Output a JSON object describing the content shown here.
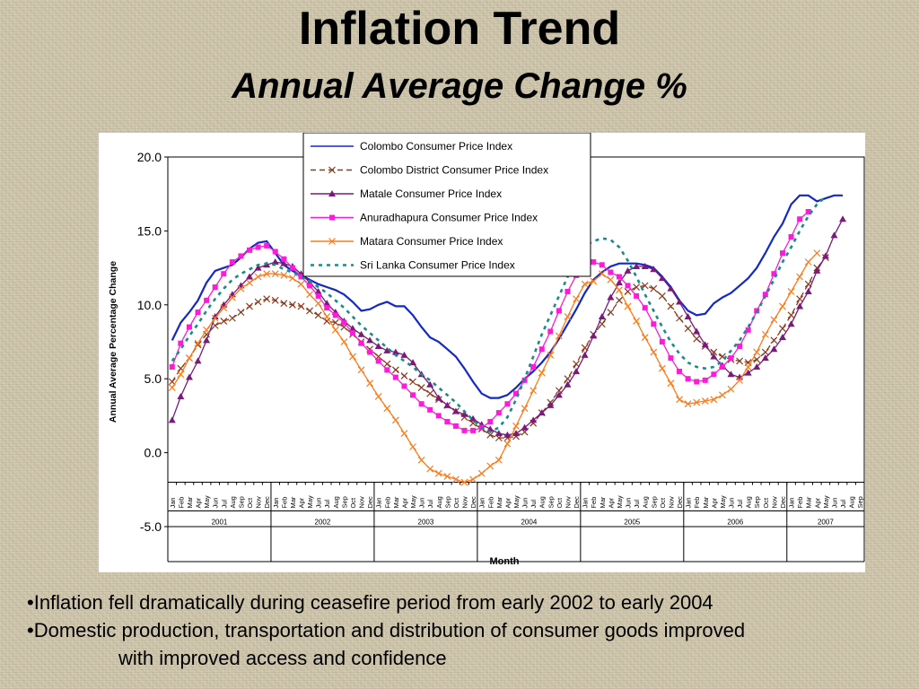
{
  "slide": {
    "title": "Inflation Trend",
    "subtitle": "Annual Average Change %",
    "bullets": [
      "•Inflation fell dramatically during ceasefire period from early 2002 to early 2004",
      "•Domestic production, transportation and distribution of consumer goods improved",
      "with improved access and confidence"
    ]
  },
  "chart_data": {
    "type": "line",
    "ylabel": "Annual Average Percentage Change",
    "xlabel": "Month",
    "ylim": [
      -5.0,
      20.0
    ],
    "yticks": [
      "20.0",
      "15.0",
      "10.0",
      "5.0",
      "0.0",
      "-5.0"
    ],
    "ytick_values": [
      20,
      15,
      10,
      5,
      0,
      -5
    ],
    "month_labels": [
      "Jan",
      "Feb",
      "Mar",
      "Apr",
      "May",
      "Jun",
      "Jul",
      "Aug",
      "Sep",
      "Oct",
      "Nov",
      "Dec"
    ],
    "years": [
      "2001",
      "2002",
      "2003",
      "2004",
      "2005",
      "2006",
      "2007"
    ],
    "last_month_label": "Sep",
    "x_start": "Jan 2001",
    "legend_position": "top-center",
    "grid": false,
    "series": [
      {
        "name": "Colombo Consumer Price Index",
        "color": "#1428c8",
        "style": "solid",
        "marker": "none",
        "values": [
          7.6,
          8.8,
          9.5,
          10.3,
          11.5,
          12.3,
          12.5,
          12.7,
          13.2,
          13.8,
          14.2,
          14.3,
          13.5,
          12.7,
          12.3,
          12.0,
          11.7,
          11.4,
          11.2,
          11.0,
          10.7,
          10.2,
          9.6,
          9.7,
          10.0,
          10.2,
          9.9,
          9.9,
          9.3,
          8.5,
          7.8,
          7.5,
          7.0,
          6.5,
          5.7,
          4.8,
          4.0,
          3.7,
          3.7,
          3.9,
          4.4,
          5.0,
          5.5,
          6.1,
          6.8,
          7.7,
          8.7,
          9.7,
          10.8,
          11.7,
          12.2,
          12.6,
          12.8,
          12.8,
          12.8,
          12.7,
          12.5,
          11.9,
          11.2,
          10.3,
          9.6,
          9.3,
          9.4,
          10.1,
          10.5,
          10.8,
          11.3,
          11.8,
          12.5,
          13.5,
          14.6,
          15.5,
          16.8,
          17.4,
          17.4,
          17.0,
          17.2,
          17.4,
          17.4
        ]
      },
      {
        "name": "Colombo District Consumer Price Index",
        "color": "#8b3a1c",
        "style": "dashed",
        "marker": "x",
        "values": [
          4.8,
          5.7,
          6.4,
          7.3,
          8.0,
          8.6,
          8.9,
          9.1,
          9.5,
          9.9,
          10.2,
          10.4,
          10.3,
          10.1,
          10.0,
          9.9,
          9.6,
          9.3,
          8.9,
          8.8,
          8.5,
          8.0,
          7.5,
          7.0,
          6.5,
          6.0,
          5.6,
          5.2,
          4.8,
          4.4,
          4.0,
          3.6,
          3.2,
          2.8,
          2.4,
          2.0,
          1.6,
          1.2,
          1.0,
          1.0,
          1.1,
          1.4,
          2.0,
          2.7,
          3.4,
          4.2,
          5.0,
          6.0,
          7.1,
          8.0,
          8.7,
          9.5,
          10.3,
          10.9,
          11.2,
          11.3,
          11.1,
          10.6,
          9.9,
          9.1,
          8.4,
          7.7,
          7.2,
          6.8,
          6.5,
          6.3,
          6.2,
          6.1,
          6.3,
          6.8,
          7.6,
          8.4,
          9.3,
          10.4,
          11.4,
          12.5,
          13.2
        ]
      },
      {
        "name": "Matale Consumer Price Index",
        "color": "#7a1a7a",
        "style": "solid",
        "marker": "triangle",
        "values": [
          2.2,
          3.8,
          5.1,
          6.2,
          7.6,
          9.2,
          10.0,
          10.7,
          11.3,
          11.9,
          12.5,
          12.7,
          12.9,
          12.8,
          12.6,
          12.1,
          11.5,
          10.9,
          10.1,
          9.5,
          8.9,
          8.4,
          8.0,
          7.6,
          7.2,
          6.9,
          6.8,
          6.6,
          6.1,
          5.3,
          4.6,
          3.7,
          3.2,
          2.8,
          2.6,
          2.3,
          1.9,
          1.6,
          1.3,
          1.2,
          1.3,
          1.7,
          2.2,
          2.7,
          3.2,
          3.9,
          4.6,
          5.5,
          6.6,
          7.9,
          9.2,
          10.5,
          11.5,
          12.3,
          12.6,
          12.6,
          12.4,
          11.8,
          11.1,
          10.2,
          9.2,
          8.2,
          7.3,
          6.5,
          5.9,
          5.3,
          5.1,
          5.4,
          5.8,
          6.4,
          7.0,
          7.8,
          8.7,
          9.9,
          10.9,
          12.3,
          13.3,
          14.7,
          15.8
        ]
      },
      {
        "name": "Anuradhapura Consumer Price Index",
        "color": "#ff1ad9",
        "style": "solid",
        "marker": "square",
        "values": [
          5.8,
          7.4,
          8.5,
          9.5,
          10.3,
          11.2,
          12.1,
          12.9,
          13.3,
          13.7,
          13.9,
          14.0,
          13.6,
          13.1,
          12.5,
          11.9,
          11.3,
          10.6,
          9.8,
          9.3,
          8.8,
          8.1,
          7.4,
          6.8,
          6.2,
          5.6,
          5.1,
          4.5,
          3.9,
          3.3,
          2.9,
          2.5,
          2.1,
          1.8,
          1.5,
          1.5,
          1.7,
          2.1,
          2.7,
          3.3,
          4.0,
          4.9,
          5.8,
          7.0,
          8.2,
          9.6,
          10.9,
          12.0,
          12.6,
          12.9,
          12.7,
          12.2,
          11.9,
          11.3,
          10.6,
          9.8,
          8.7,
          7.5,
          6.4,
          5.5,
          5.0,
          4.8,
          4.9,
          5.3,
          5.8,
          6.4,
          7.2,
          8.3,
          9.6,
          10.7,
          12.1,
          13.5,
          14.6,
          15.8,
          16.3
        ]
      },
      {
        "name": "Matara Consumer Price Index",
        "color": "#ff7a1a",
        "style": "solid",
        "marker": "x",
        "values": [
          4.4,
          5.3,
          6.4,
          7.4,
          8.3,
          9.1,
          9.8,
          10.5,
          11.1,
          11.5,
          11.9,
          12.1,
          12.1,
          12.0,
          11.8,
          11.4,
          10.7,
          10.1,
          9.2,
          8.3,
          7.5,
          6.5,
          5.6,
          4.7,
          3.8,
          3.0,
          2.2,
          1.3,
          0.4,
          -0.5,
          -1.1,
          -1.4,
          -1.6,
          -1.8,
          -2.0,
          -1.8,
          -1.4,
          -0.9,
          -0.5,
          0.6,
          1.8,
          3.0,
          4.2,
          5.4,
          6.6,
          7.9,
          9.2,
          10.4,
          11.4,
          11.6,
          12.1,
          11.7,
          11.0,
          9.9,
          8.9,
          7.8,
          6.8,
          5.7,
          4.7,
          3.6,
          3.3,
          3.4,
          3.5,
          3.6,
          3.9,
          4.3,
          4.9,
          5.8,
          6.8,
          8.0,
          9.0,
          9.9,
          10.9,
          11.9,
          12.9,
          13.5
        ]
      },
      {
        "name": "Sri Lanka Consumer Price Index",
        "color": "#1a8a8a",
        "style": "dotted",
        "marker": "none",
        "values": [
          6.2,
          7.0,
          7.9,
          8.7,
          9.6,
          10.4,
          11.1,
          11.7,
          12.1,
          12.4,
          12.7,
          12.8,
          12.7,
          12.4,
          12.2,
          11.9,
          11.6,
          11.2,
          10.8,
          10.3,
          9.8,
          9.2,
          8.6,
          8.1,
          7.6,
          7.1,
          6.6,
          6.2,
          5.8,
          5.3,
          4.9,
          4.4,
          3.9,
          3.4,
          2.8,
          2.2,
          1.7,
          1.4,
          1.7,
          2.4,
          3.6,
          5.0,
          6.5,
          8.0,
          9.3,
          10.6,
          11.9,
          13.1,
          14.0,
          14.3,
          14.5,
          14.4,
          13.9,
          13.0,
          11.9,
          10.7,
          9.6,
          8.5,
          7.5,
          6.7,
          6.1,
          5.8,
          5.7,
          5.8,
          6.2,
          6.9,
          7.6,
          8.5,
          9.5,
          10.6,
          11.7,
          12.9,
          13.9,
          15.0,
          16.0,
          16.8,
          17.3
        ]
      }
    ]
  }
}
